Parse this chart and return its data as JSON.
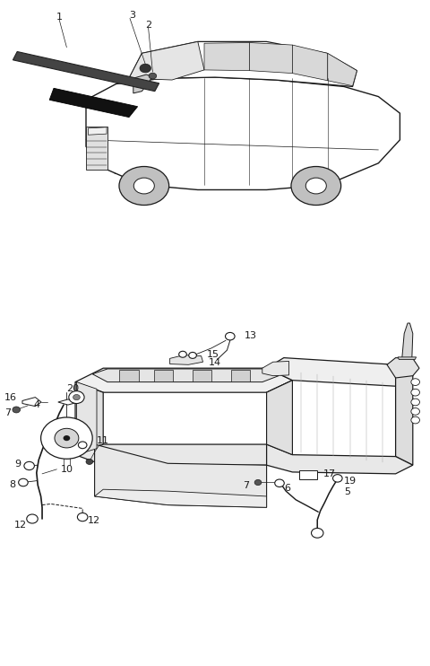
{
  "background_color": "#ffffff",
  "line_color": "#1a1a1a",
  "fig_width": 4.8,
  "fig_height": 7.42,
  "dpi": 100
}
